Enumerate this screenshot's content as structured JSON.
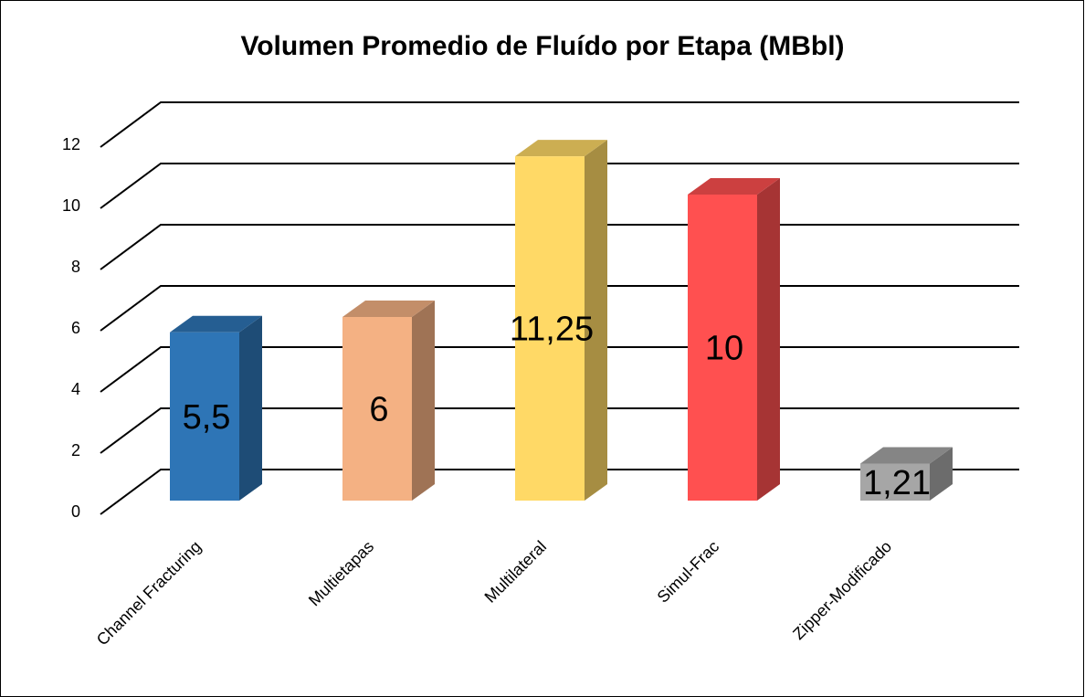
{
  "chart_data": {
    "type": "bar3d",
    "title": "Volumen Promedio de Fluído por Etapa (MBbl)",
    "categories": [
      "Channel Fracturing",
      "Multietapas",
      "Multilateral",
      "Simul-Frac",
      "Zipper-Modificado"
    ],
    "values": [
      5.5,
      6,
      11.25,
      10,
      1.21
    ],
    "value_labels": [
      "5,5",
      "6",
      "11,25",
      "10",
      "1,21"
    ],
    "colors": [
      "#2e75b6",
      "#f4b183",
      "#ffd966",
      "#ff5050",
      "#a6a6a6"
    ],
    "ylim": [
      0,
      12
    ],
    "yticks": [
      0,
      2,
      4,
      6,
      8,
      10,
      12
    ],
    "grid": true
  }
}
